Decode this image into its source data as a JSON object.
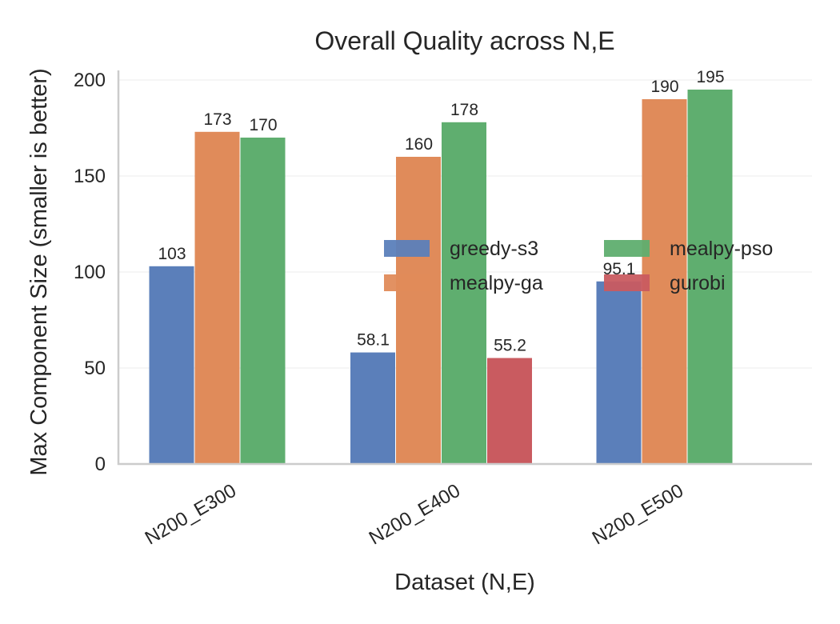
{
  "chart_data": {
    "type": "bar",
    "title": "Overall Quality across N,E",
    "xlabel": "Dataset (N,E)",
    "ylabel": "Max Component Size (smaller is better)",
    "categories": [
      "N200_E300",
      "N200_E400",
      "N200_E500"
    ],
    "yticks": [
      0,
      50,
      100,
      150,
      200
    ],
    "ylim": [
      0,
      205
    ],
    "grid": true,
    "legend_position": "center-right",
    "series": [
      {
        "name": "greedy-s3",
        "color": "#5b7fba",
        "values": [
          103,
          58.1,
          95.1
        ],
        "labels": [
          "103",
          "58.1",
          "95.1"
        ]
      },
      {
        "name": "mealpy-ga",
        "color": "#e08b5a",
        "values": [
          173,
          160,
          190
        ],
        "labels": [
          "173",
          "160",
          "190"
        ]
      },
      {
        "name": "mealpy-pso",
        "color": "#5fae6f",
        "values": [
          170,
          178,
          195
        ],
        "labels": [
          "170",
          "178",
          "195"
        ]
      },
      {
        "name": "gurobi",
        "color": "#c95b60",
        "values": [
          null,
          55.2,
          null
        ],
        "labels": [
          null,
          "55.2",
          null
        ]
      }
    ]
  }
}
